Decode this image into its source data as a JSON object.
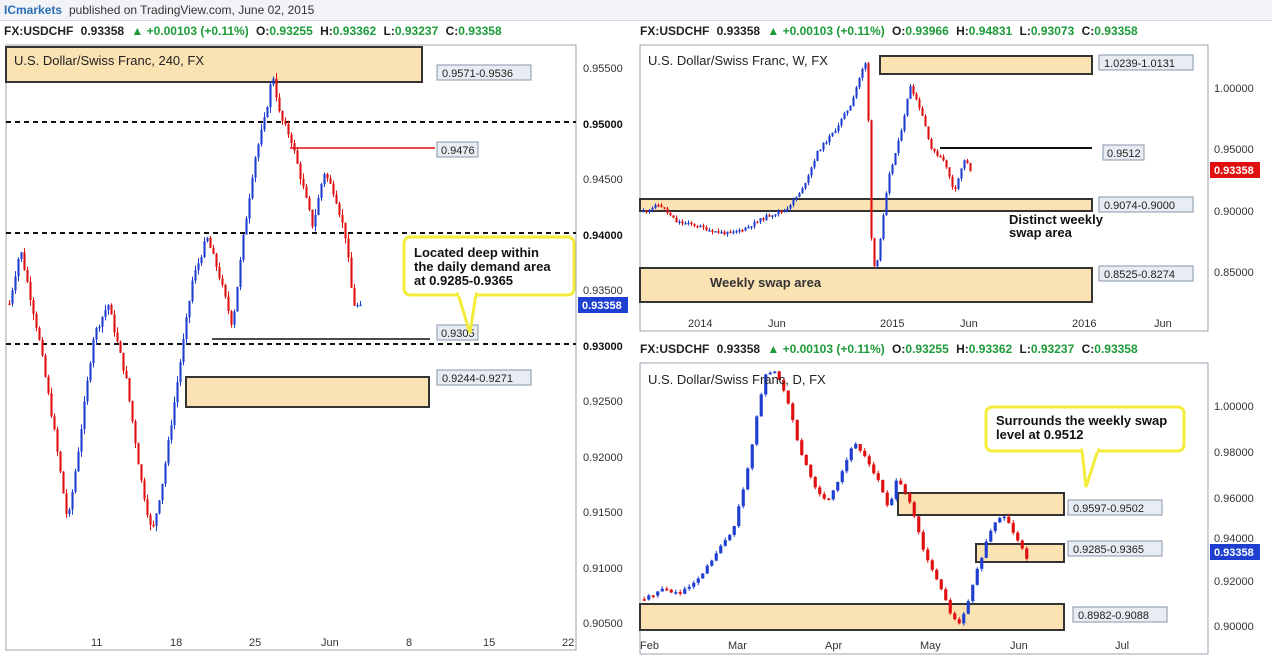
{
  "header": {
    "brand": "ICmarkets",
    "published": "published on TradingView.com, June 02, 2015"
  },
  "colors": {
    "up": "#1f3fd1",
    "down": "#e01010",
    "zone_fill": "#fbe2b3",
    "callout_border": "#f3ec3a",
    "green": "#1c9b38"
  },
  "panels": {
    "h4": {
      "symbol": "FX:USDCHF",
      "last": "0.93358",
      "change": "▲ +0.00103 (+0.11%)",
      "o_label": "O:",
      "o": "0.93255",
      "h_label": "H:",
      "h": "0.93362",
      "l_label": "L:",
      "l": "0.93237",
      "c_label": "C:",
      "c": "0.93358",
      "title": "U.S. Dollar/Swiss Franc, 240, FX",
      "price_tag": "0.93358",
      "callout": [
        "Located deep within",
        "the daily demand area",
        "at 0.9285-0.9365"
      ]
    },
    "weekly": {
      "symbol": "FX:USDCHF",
      "last": "0.93358",
      "change": "▲ +0.00103 (+0.11%)",
      "o_label": "O:",
      "o": "0.93966",
      "h_label": "H:",
      "h": "0.94831",
      "l_label": "L:",
      "l": "0.93073",
      "c_label": "C:",
      "c": "0.93358",
      "title": "U.S. Dollar/Swiss Franc, W, FX",
      "price_tag": "0.93358",
      "annotation": [
        "Distinct weekly",
        "swap area"
      ],
      "zone_text": "Weekly swap area"
    },
    "daily": {
      "symbol": "FX:USDCHF",
      "last": "0.93358",
      "change": "▲ +0.00103 (+0.11%)",
      "o_label": "O:",
      "o": "0.93255",
      "h_label": "H:",
      "h": "0.93362",
      "l_label": "L:",
      "l": "0.93237",
      "c_label": "C:",
      "c": "0.93358",
      "title": "U.S. Dollar/Swiss Franc, D, FX",
      "price_tag": "0.93358",
      "callout": [
        "Surrounds the weekly swap",
        "level at 0.9512"
      ]
    }
  },
  "chart_data": [
    {
      "type": "candlestick",
      "title": "U.S. Dollar/Swiss Franc, 240, FX",
      "x_ticks": [
        "11",
        "18",
        "25",
        "Jun",
        "8",
        "15",
        "22"
      ],
      "y_ticks": [
        "0.95500",
        "0.95000",
        "0.94500",
        "0.94000",
        "0.93500",
        "0.93000",
        "0.92500",
        "0.92000",
        "0.91500",
        "0.91000",
        "0.90500"
      ],
      "ylim": [
        0.9025,
        0.9575
      ],
      "levels": [
        {
          "value": 0.95,
          "style": "dashed",
          "label": "0.95000"
        },
        {
          "value": 0.94,
          "style": "dashed",
          "label": "0.94000"
        },
        {
          "value": 0.93,
          "style": "dashed",
          "label": "0.93000"
        },
        {
          "value": 0.9476,
          "style": "red",
          "label": "0.9476"
        },
        {
          "value": 0.9305,
          "style": "solid",
          "label": "0.9305"
        }
      ],
      "zones": [
        {
          "from": 0.9571,
          "to": 0.9536,
          "label": "0.9571-0.9536"
        },
        {
          "from": 0.9244,
          "to": 0.9271,
          "label": "0.9244-0.9271"
        }
      ],
      "path": [
        [
          0,
          0.934
        ],
        [
          3,
          0.939
        ],
        [
          8,
          0.931
        ],
        [
          12,
          0.923
        ],
        [
          16,
          0.914
        ],
        [
          19,
          0.921
        ],
        [
          23,
          0.931
        ],
        [
          27,
          0.934
        ],
        [
          32,
          0.927
        ],
        [
          36,
          0.918
        ],
        [
          39,
          0.913
        ],
        [
          42,
          0.918
        ],
        [
          46,
          0.927
        ],
        [
          50,
          0.936
        ],
        [
          54,
          0.94
        ],
        [
          57,
          0.937
        ],
        [
          61,
          0.932
        ],
        [
          64,
          0.94
        ],
        [
          67,
          0.947
        ],
        [
          70,
          0.951
        ],
        [
          72,
          0.955
        ],
        [
          74,
          0.951
        ],
        [
          77,
          0.949
        ],
        [
          80,
          0.945
        ],
        [
          83,
          0.941
        ],
        [
          86,
          0.946
        ],
        [
          89,
          0.944
        ],
        [
          92,
          0.94
        ],
        [
          94,
          0.934
        ],
        [
          96,
          0.9336
        ]
      ]
    },
    {
      "type": "candlestick",
      "title": "U.S. Dollar/Swiss Franc, W, FX",
      "x_ticks": [
        "2014",
        "Jun",
        "2015",
        "Jun",
        "2016",
        "Jun"
      ],
      "y_ticks": [
        "1.00000",
        "0.95000",
        "0.90000",
        "0.85000"
      ],
      "ylim": [
        0.815,
        1.03
      ],
      "levels": [
        {
          "value": 0.9512,
          "style": "solid",
          "label": "0.9512"
        }
      ],
      "zones": [
        {
          "from": 1.0239,
          "to": 1.0131,
          "label": "1.0239-1.0131"
        },
        {
          "from": 0.9074,
          "to": 0.9,
          "label": "0.9074-0.9000"
        },
        {
          "from": 0.8525,
          "to": 0.8274,
          "label": "0.8525-0.8274"
        }
      ],
      "path": [
        [
          0,
          0.905
        ],
        [
          3,
          0.91
        ],
        [
          6,
          0.897
        ],
        [
          9,
          0.895
        ],
        [
          13,
          0.89
        ],
        [
          16,
          0.888
        ],
        [
          19,
          0.893
        ],
        [
          23,
          0.902
        ],
        [
          26,
          0.906
        ],
        [
          29,
          0.92
        ],
        [
          32,
          0.95
        ],
        [
          35,
          0.965
        ],
        [
          38,
          0.985
        ],
        [
          40,
          1.01
        ],
        [
          41,
          1.018
        ],
        [
          42,
          0.86
        ],
        [
          43,
          0.87
        ],
        [
          45,
          0.93
        ],
        [
          47,
          0.96
        ],
        [
          49,
          1.0
        ],
        [
          51,
          0.98
        ],
        [
          53,
          0.95
        ],
        [
          55,
          0.945
        ],
        [
          57,
          0.92
        ],
        [
          59,
          0.945
        ],
        [
          60,
          0.935
        ]
      ]
    },
    {
      "type": "candlestick",
      "title": "U.S. Dollar/Swiss Franc, D, FX",
      "x_ticks": [
        "Feb",
        "Mar",
        "Apr",
        "May",
        "Jun",
        "Jul"
      ],
      "y_ticks": [
        "1.00000",
        "0.98000",
        "0.96000",
        "0.94000",
        "0.92000",
        "0.90000"
      ],
      "ylim": [
        0.897,
        1.0085
      ],
      "zones": [
        {
          "from": 0.9597,
          "to": 0.9502,
          "label": "0.9597-0.9502"
        },
        {
          "from": 0.9285,
          "to": 0.9365,
          "label": "0.9285-0.9365"
        },
        {
          "from": 0.8982,
          "to": 0.9088,
          "label": "0.8982-0.9088"
        }
      ],
      "path": [
        [
          0,
          0.918
        ],
        [
          4,
          0.922
        ],
        [
          8,
          0.92
        ],
        [
          12,
          0.925
        ],
        [
          16,
          0.935
        ],
        [
          20,
          0.945
        ],
        [
          23,
          0.965
        ],
        [
          25,
          0.985
        ],
        [
          27,
          1.003
        ],
        [
          29,
          1.006
        ],
        [
          31,
          1.0
        ],
        [
          33,
          0.99
        ],
        [
          35,
          0.975
        ],
        [
          38,
          0.962
        ],
        [
          41,
          0.955
        ],
        [
          44,
          0.965
        ],
        [
          47,
          0.978
        ],
        [
          50,
          0.972
        ],
        [
          53,
          0.962
        ],
        [
          55,
          0.952
        ],
        [
          57,
          0.965
        ],
        [
          59,
          0.958
        ],
        [
          61,
          0.948
        ],
        [
          63,
          0.935
        ],
        [
          66,
          0.925
        ],
        [
          69,
          0.912
        ],
        [
          71,
          0.908
        ],
        [
          73,
          0.918
        ],
        [
          75,
          0.93
        ],
        [
          77,
          0.94
        ],
        [
          79,
          0.948
        ],
        [
          81,
          0.95
        ],
        [
          83,
          0.944
        ],
        [
          85,
          0.938
        ],
        [
          86,
          0.9336
        ]
      ]
    }
  ]
}
